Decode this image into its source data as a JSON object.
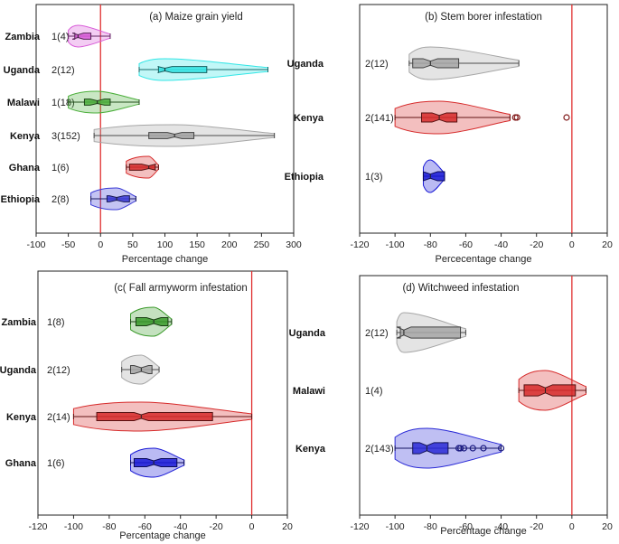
{
  "figure": "Violin plots of percentage change by country",
  "chart_data": [
    {
      "type": "violin",
      "panel": "a",
      "title": "(a) Maize grain yield",
      "xlabel": "Percentage change",
      "xlim": [
        -100,
        300
      ],
      "xticks": [
        "-100",
        "-50",
        "0",
        "50",
        "100",
        "150",
        "200",
        "250",
        "300"
      ],
      "reference_line": 0,
      "groups": [
        {
          "name": "Zambia",
          "count": "1(4)",
          "color": "#d85ad8",
          "min": -50,
          "q1": -40,
          "median": -35,
          "q3": -15,
          "max": 15
        },
        {
          "name": "Uganda",
          "count": "2(12)",
          "color": "#33e6e6",
          "min": 60,
          "q1": 90,
          "median": 100,
          "q3": 165,
          "max": 260
        },
        {
          "name": "Malawi",
          "count": "1(18)",
          "color": "#4caf3c",
          "min": -50,
          "q1": -25,
          "median": -5,
          "q3": 15,
          "max": 60
        },
        {
          "name": "Kenya",
          "count": "3(152)",
          "color": "#a6a6a6",
          "min": -10,
          "q1": 75,
          "median": 115,
          "q3": 145,
          "max": 270
        },
        {
          "name": "Ghana",
          "count": "1(6)",
          "color": "#d62a2a",
          "min": 40,
          "q1": 45,
          "median": 75,
          "q3": 85,
          "max": 90
        },
        {
          "name": "Ethiopia",
          "count": "2(8)",
          "color": "#3a3ad6",
          "min": -15,
          "q1": 10,
          "median": 25,
          "q3": 45,
          "max": 55
        }
      ]
    },
    {
      "type": "violin",
      "panel": "b",
      "title": "(b) Stem borer infestation",
      "xlabel": "Percecentage change",
      "xlim": [
        -120,
        20
      ],
      "xticks": [
        "-120",
        "-100",
        "-80",
        "-60",
        "-40",
        "-20",
        "0",
        "20"
      ],
      "reference_line": 0,
      "groups": [
        {
          "name": "Uganda",
          "count": "2(12)",
          "color": "#a6a6a6",
          "min": -92,
          "q1": -90,
          "median": -80,
          "q3": -64,
          "max": -30
        },
        {
          "name": "Kenya",
          "count": "2(141)",
          "color": "#d62a2a",
          "min": -100,
          "q1": -85,
          "median": -75,
          "q3": -65,
          "max": -35,
          "outliers": [
            -32,
            -31,
            -3
          ]
        },
        {
          "name": "Ethiopia",
          "count": "1(3)",
          "color": "#1a1ad6",
          "min": -84,
          "q1": -84,
          "median": -80,
          "q3": -72,
          "max": -72
        }
      ]
    },
    {
      "type": "violin",
      "panel": "c",
      "title": "(c( Fall armyworm infestation",
      "xlabel": "Percentage change",
      "xlim": [
        -120,
        20
      ],
      "xticks": [
        "-120",
        "-100",
        "-80",
        "-60",
        "-40",
        "-20",
        "0",
        "20"
      ],
      "reference_line": 0,
      "groups": [
        {
          "name": "Zambia",
          "count": "1(8)",
          "color": "#3a9a2a",
          "min": -68,
          "q1": -65,
          "median": -55,
          "q3": -47,
          "max": -45
        },
        {
          "name": "Uganda",
          "count": "2(12)",
          "color": "#a6a6a6",
          "min": -73,
          "q1": -68,
          "median": -62,
          "q3": -56,
          "max": -52
        },
        {
          "name": "Kenya",
          "count": "2(14)",
          "color": "#d62a2a",
          "min": -100,
          "q1": -87,
          "median": -62,
          "q3": -22,
          "max": 0
        },
        {
          "name": "Ghana",
          "count": "1(6)",
          "color": "#1a1ad6",
          "min": -68,
          "q1": -66,
          "median": -55,
          "q3": -42,
          "max": -38
        }
      ]
    },
    {
      "type": "violin",
      "panel": "d",
      "title": "(d) Witchweed infestation",
      "xlabel": "Percentage change",
      "xlim": [
        -120,
        20
      ],
      "xticks": [
        "-120",
        "-100",
        "-80",
        "-60",
        "-40",
        "-20",
        "0",
        "20"
      ],
      "reference_line": 0,
      "groups": [
        {
          "name": "Uganda",
          "count": "2(12)",
          "color": "#a6a6a6",
          "min": -99,
          "q1": -97,
          "median": -95,
          "q3": -63,
          "max": -60
        },
        {
          "name": "Malawi",
          "count": "1(4)",
          "color": "#d62a2a",
          "min": -30,
          "q1": -27,
          "median": -15,
          "q3": 2,
          "max": 8
        },
        {
          "name": "Kenya",
          "count": "2(143)",
          "color": "#2a2ad6",
          "min": -100,
          "q1": -90,
          "median": -82,
          "q3": -70,
          "max": -40,
          "outliers": [
            -64,
            -63,
            -61,
            -56,
            -50,
            -40
          ]
        }
      ]
    }
  ]
}
